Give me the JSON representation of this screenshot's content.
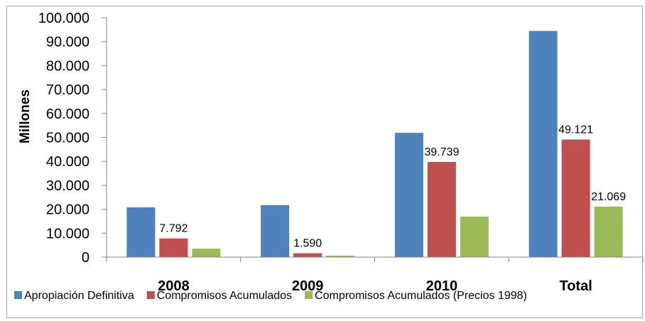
{
  "chart_data": {
    "type": "bar",
    "title": "",
    "xlabel": "",
    "ylabel": "Millones",
    "ylim": [
      0,
      100000
    ],
    "yticks": [
      "0",
      "10.000",
      "20.000",
      "30.000",
      "40.000",
      "50.000",
      "60.000",
      "70.000",
      "80.000",
      "90.000",
      "100.000"
    ],
    "categories": [
      "2008",
      "2009",
      "2010",
      "Total"
    ],
    "series": [
      {
        "name": "Apropiación Definitiva",
        "color": "#4f81bd",
        "values": [
          20800,
          21700,
          51900,
          94500
        ]
      },
      {
        "name": "Compromisos Acumulados",
        "color": "#c0504d",
        "values": [
          7792,
          1590,
          39739,
          49121
        ]
      },
      {
        "name": "Compromisos Acumulados (Precios 1998)",
        "color": "#9bbb59",
        "values": [
          3500,
          600,
          16900,
          21069
        ]
      }
    ],
    "data_labels": [
      {
        "series": 1,
        "category": 0,
        "text": "7.792"
      },
      {
        "series": 1,
        "category": 1,
        "text": "1.590"
      },
      {
        "series": 1,
        "category": 2,
        "text": "39.739"
      },
      {
        "series": 1,
        "category": 3,
        "text": "49.121"
      },
      {
        "series": 2,
        "category": 3,
        "text": "21.069"
      }
    ],
    "legend_position": "bottom",
    "grid": false
  }
}
